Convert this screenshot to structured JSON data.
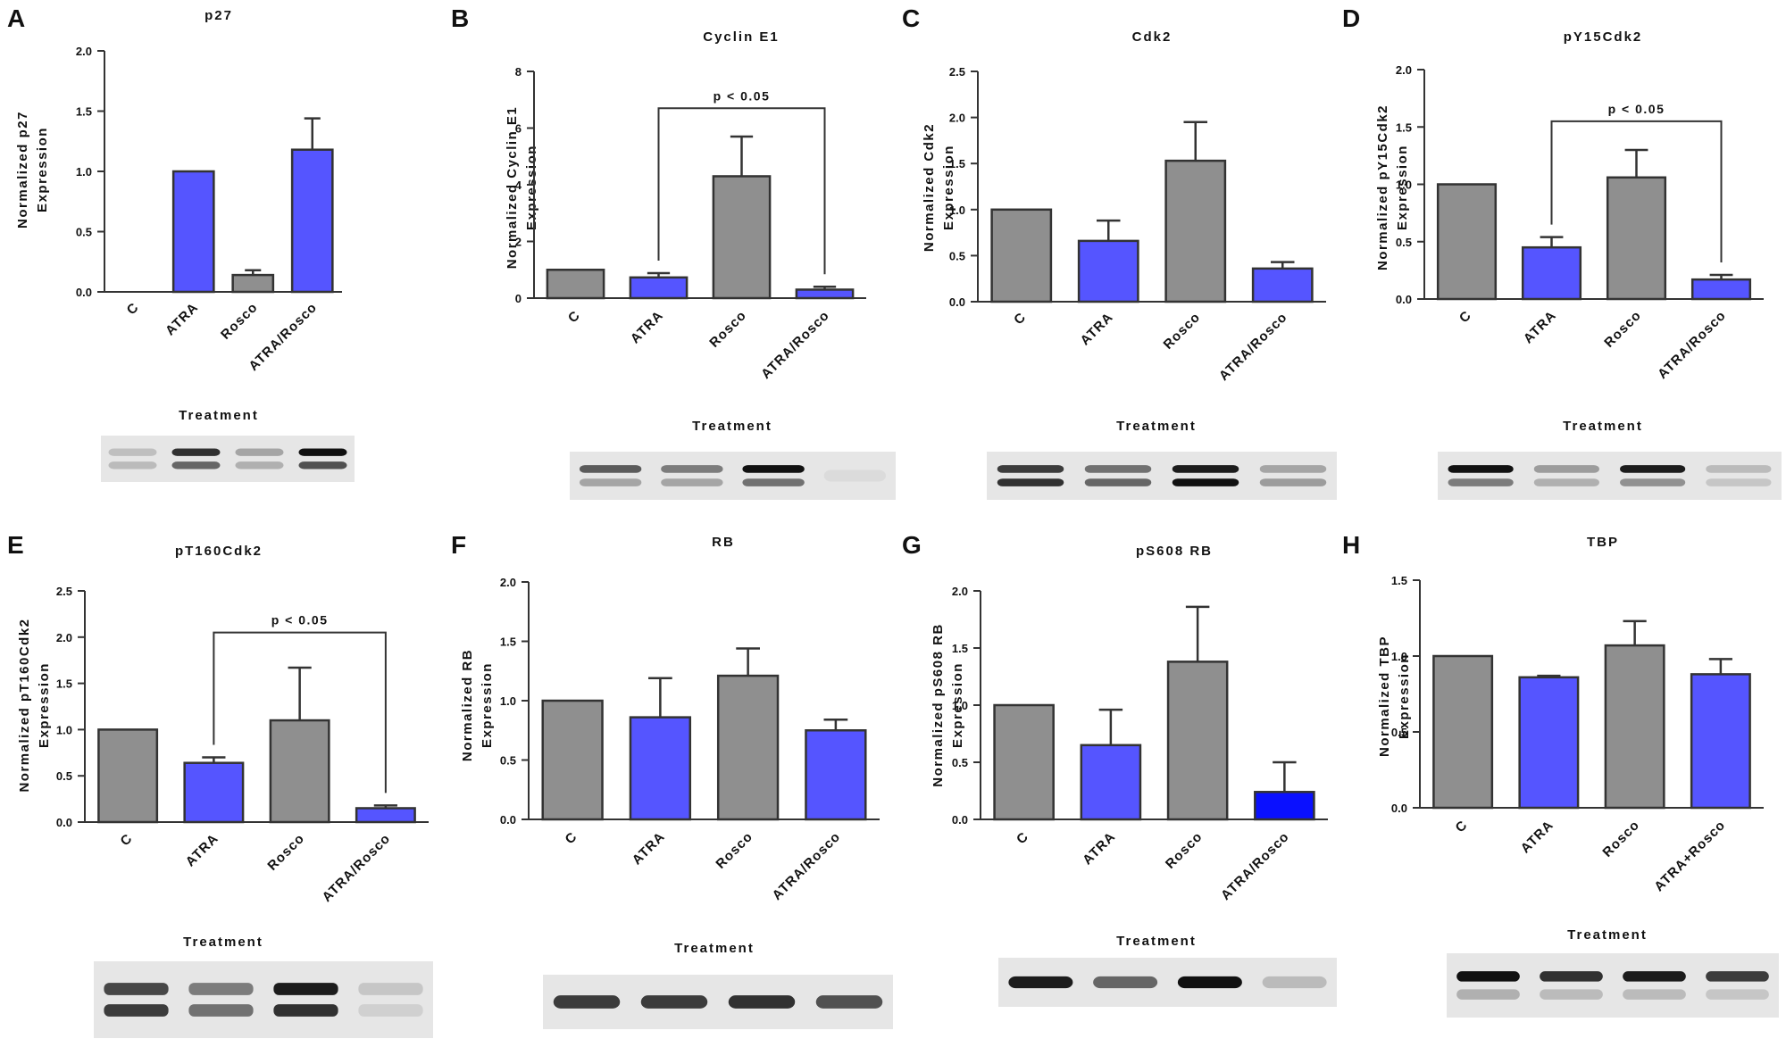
{
  "colors": {
    "gray_bar": "#8f8f8f",
    "blue_bar": "#5555ff",
    "dark_blue_bar": "#0a10ff",
    "axis": "#333333"
  },
  "chart_data": [
    {
      "panel": "A",
      "type": "bar",
      "title": "p27",
      "ylabel_lines": [
        "Normalized p27",
        "Expression"
      ],
      "xlabel": "Treatment",
      "categories": [
        "C",
        "ATRA",
        "Rosco",
        "ATRA/Rosco"
      ],
      "values": [
        0.0,
        1.0,
        0.14,
        1.18
      ],
      "errors": [
        0.0,
        0.0,
        0.04,
        0.26
      ],
      "bar_colors": [
        "gray",
        "blue",
        "gray",
        "blue"
      ],
      "ylim": [
        0,
        2.0
      ],
      "yticks": [
        "0.0",
        "0.5",
        "1.0",
        "1.5",
        "2.0"
      ],
      "significance": null,
      "blot": {
        "bands": [
          [
            0.18,
            0.2
          ],
          [
            0.85,
            0.6
          ],
          [
            0.3,
            0.25
          ],
          [
            1.0,
            0.7
          ]
        ]
      }
    },
    {
      "panel": "B",
      "type": "bar",
      "title": "Cyclin E1",
      "ylabel_lines": [
        "Normalized Cyclin E1",
        "Expression"
      ],
      "xlabel": "Treatment",
      "categories": [
        "C",
        "ATRA",
        "Rosco",
        "ATRA/Rosco"
      ],
      "values": [
        1.0,
        0.73,
        4.3,
        0.3
      ],
      "errors": [
        0.0,
        0.15,
        1.4,
        0.1
      ],
      "bar_colors": [
        "gray",
        "blue",
        "gray",
        "blue"
      ],
      "ylim": [
        0,
        8
      ],
      "yticks": [
        "0",
        "2",
        "4",
        "6",
        "8"
      ],
      "significance": {
        "from": 1,
        "to": 3,
        "label": "p < 0.05",
        "y": 6.7
      },
      "blot": {
        "bands": [
          [
            0.65,
            0.3
          ],
          [
            0.5,
            0.3
          ],
          [
            1.0,
            0.55
          ],
          [
            0.05,
            0.0
          ]
        ]
      }
    },
    {
      "panel": "C",
      "type": "bar",
      "title": "Cdk2",
      "ylabel_lines": [
        "Normalized Cdk2",
        "Expression"
      ],
      "xlabel": "Treatment",
      "categories": [
        "C",
        "ATRA",
        "Rosco",
        "ATRA/Rosco"
      ],
      "values": [
        1.0,
        0.66,
        1.53,
        0.36
      ],
      "errors": [
        0.0,
        0.22,
        0.42,
        0.07
      ],
      "bar_colors": [
        "gray",
        "blue",
        "gray",
        "blue"
      ],
      "ylim": [
        0,
        2.5
      ],
      "yticks": [
        "0.0",
        "0.5",
        "1.0",
        "1.5",
        "2.0",
        "2.5"
      ],
      "significance": null,
      "blot": {
        "bands": [
          [
            0.8,
            0.85
          ],
          [
            0.55,
            0.6
          ],
          [
            0.95,
            1.0
          ],
          [
            0.3,
            0.35
          ]
        ]
      }
    },
    {
      "panel": "D",
      "type": "bar",
      "title": "pY15Cdk2",
      "ylabel_lines": [
        "Normalized pY15Cdk2",
        "Expression"
      ],
      "xlabel": "Treatment",
      "categories": [
        "C",
        "ATRA",
        "Rosco",
        "ATRA/Rosco"
      ],
      "values": [
        1.0,
        0.45,
        1.06,
        0.17
      ],
      "errors": [
        0.0,
        0.09,
        0.24,
        0.04
      ],
      "bar_colors": [
        "gray",
        "blue",
        "gray",
        "blue"
      ],
      "ylim": [
        0,
        2.0
      ],
      "yticks": [
        "0.0",
        "0.5",
        "1.0",
        "1.5",
        "2.0"
      ],
      "significance": {
        "from": 1,
        "to": 3,
        "label": "p < 0.05",
        "y": 1.55
      },
      "blot": {
        "bands": [
          [
            1.0,
            0.5
          ],
          [
            0.35,
            0.25
          ],
          [
            0.95,
            0.4
          ],
          [
            0.2,
            0.15
          ]
        ]
      }
    },
    {
      "panel": "E",
      "type": "bar",
      "title": "pT160Cdk2",
      "ylabel_lines": [
        "Normalized pT160Cdk2",
        "Expression"
      ],
      "xlabel": "Treatment",
      "categories": [
        "C",
        "ATRA",
        "Rosco",
        "ATRA/Rosco"
      ],
      "values": [
        1.0,
        0.64,
        1.1,
        0.15
      ],
      "errors": [
        0.0,
        0.06,
        0.57,
        0.03
      ],
      "bar_colors": [
        "gray",
        "blue",
        "gray",
        "blue"
      ],
      "ylim": [
        0,
        2.5
      ],
      "yticks": [
        "0.0",
        "0.5",
        "1.0",
        "1.5",
        "2.0",
        "2.5"
      ],
      "significance": {
        "from": 1,
        "to": 3,
        "label": "p < 0.05",
        "y": 2.05
      },
      "blot": {
        "bands": [
          [
            0.75,
            0.8
          ],
          [
            0.5,
            0.55
          ],
          [
            0.95,
            0.85
          ],
          [
            0.15,
            0.1
          ]
        ]
      }
    },
    {
      "panel": "F",
      "type": "bar",
      "title": "RB",
      "ylabel_lines": [
        "Normalized RB",
        "Expression"
      ],
      "xlabel": "Treatment",
      "categories": [
        "C",
        "ATRA",
        "Rosco",
        "ATRA/Rosco"
      ],
      "values": [
        1.0,
        0.86,
        1.21,
        0.75
      ],
      "errors": [
        0.0,
        0.33,
        0.23,
        0.09
      ],
      "bar_colors": [
        "gray",
        "blue",
        "gray",
        "blue"
      ],
      "ylim": [
        0,
        2.0
      ],
      "yticks": [
        "0.0",
        "0.5",
        "1.0",
        "1.5",
        "2.0"
      ],
      "significance": null,
      "blot": {
        "bands": [
          [
            0.8,
            0.0
          ],
          [
            0.8,
            0.0
          ],
          [
            0.85,
            0.0
          ],
          [
            0.7,
            0.0
          ]
        ]
      }
    },
    {
      "panel": "G",
      "type": "bar",
      "title": "pS608 RB",
      "ylabel_lines": [
        "Normalized pS608 RB",
        "Expression"
      ],
      "xlabel": "Treatment",
      "categories": [
        "C",
        "ATRA",
        "Rosco",
        "ATRA/Rosco"
      ],
      "values": [
        1.0,
        0.65,
        1.38,
        0.24
      ],
      "errors": [
        0.0,
        0.31,
        0.48,
        0.26
      ],
      "bar_colors": [
        "gray",
        "blue",
        "gray",
        "darkblue"
      ],
      "ylim": [
        0,
        2.0
      ],
      "yticks": [
        "0.0",
        "0.5",
        "1.0",
        "1.5",
        "2.0"
      ],
      "significance": null,
      "blot": {
        "bands": [
          [
            0.95,
            0.0
          ],
          [
            0.6,
            0.0
          ],
          [
            1.0,
            0.0
          ],
          [
            0.2,
            0.0
          ]
        ]
      }
    },
    {
      "panel": "H",
      "type": "bar",
      "title": "TBP",
      "ylabel_lines": [
        "Normalized TBP",
        "Expression"
      ],
      "xlabel": "Treatment",
      "categories": [
        "C",
        "ATRA",
        "Rosco",
        "ATRA+Rosco"
      ],
      "values": [
        1.0,
        0.86,
        1.07,
        0.88
      ],
      "errors": [
        0.0,
        0.01,
        0.16,
        0.1
      ],
      "bar_colors": [
        "gray",
        "blue",
        "gray",
        "blue"
      ],
      "ylim": [
        0,
        1.5
      ],
      "yticks": [
        "0.0",
        "0.5",
        "1.0",
        "1.5"
      ],
      "significance": null,
      "blot": {
        "bands": [
          [
            1.0,
            0.25
          ],
          [
            0.85,
            0.2
          ],
          [
            0.95,
            0.2
          ],
          [
            0.8,
            0.15
          ]
        ]
      }
    }
  ]
}
